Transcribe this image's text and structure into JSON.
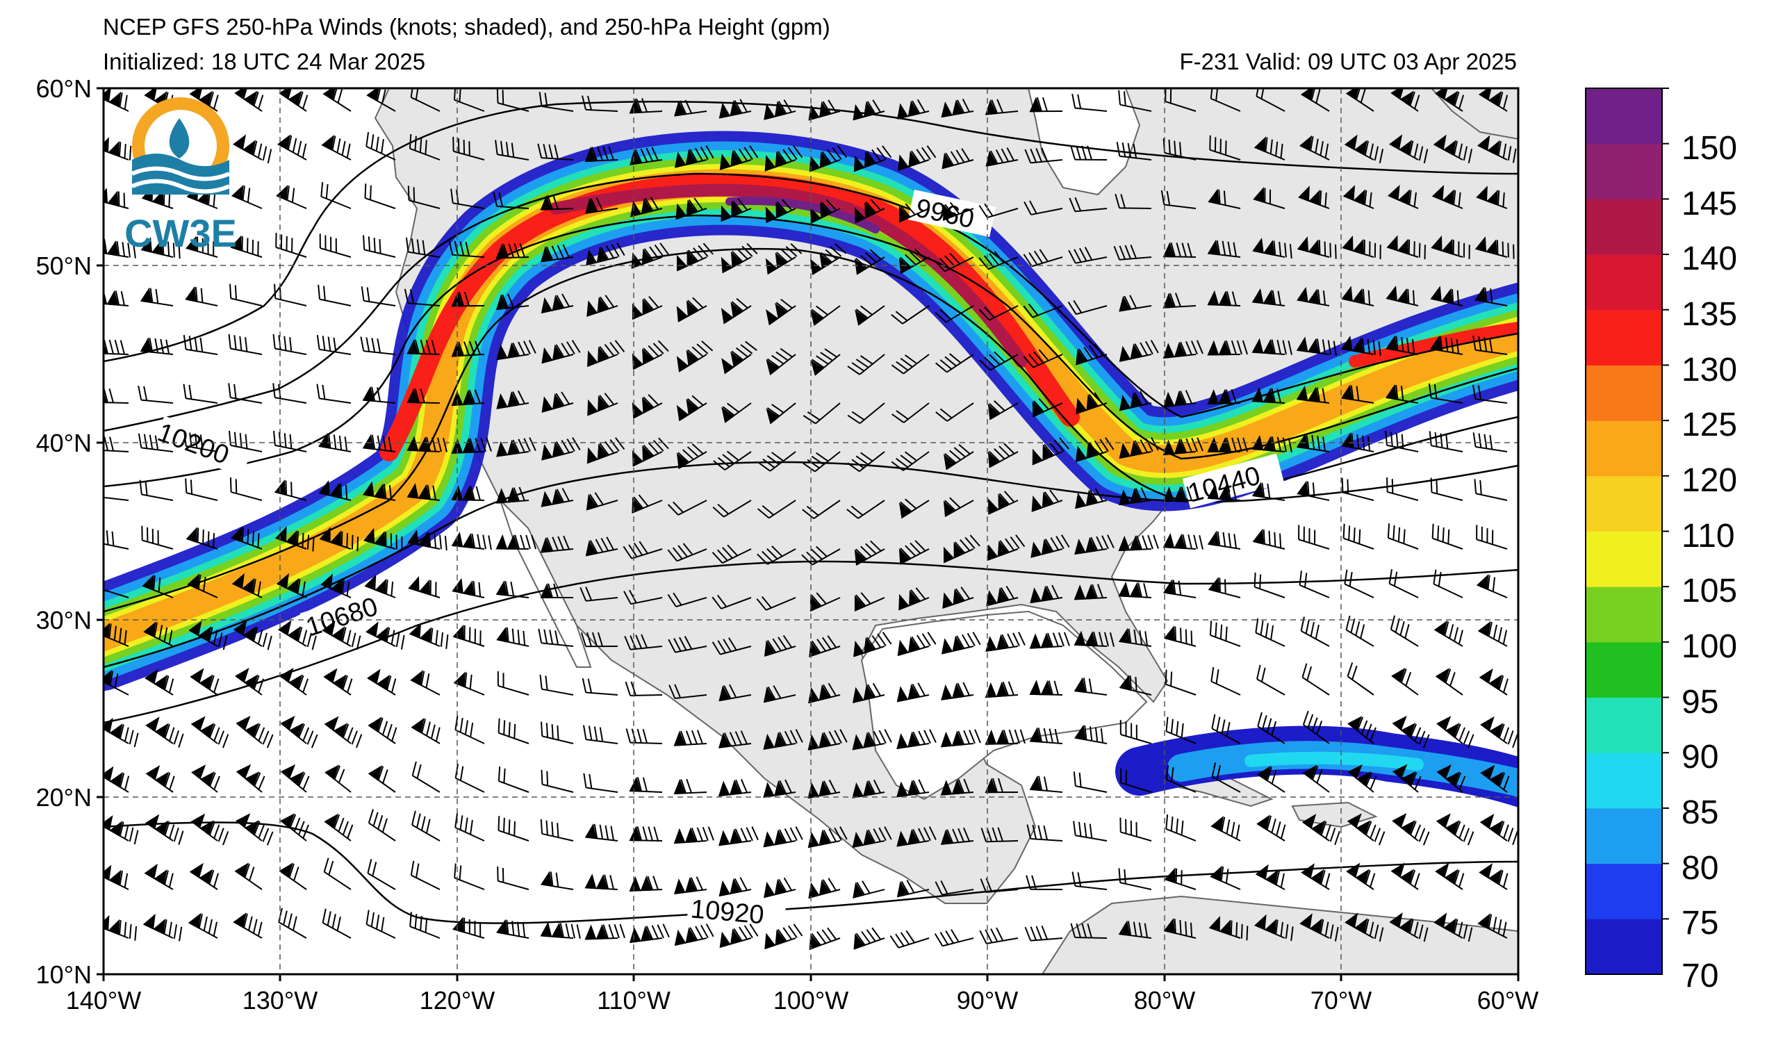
{
  "header": {
    "title": "NCEP GFS 250-hPa Winds (knots; shaded), and 250-hPa Height (gpm)",
    "initialized": "Initialized: 18 UTC 24 Mar 2025",
    "valid": "F-231  Valid: 09 UTC 03 Apr 2025"
  },
  "logo": {
    "text": "CW3E",
    "colors": {
      "sun": "#f5a623",
      "wave": "#1e7fa6"
    }
  },
  "axes": {
    "lat_labels": [
      "60°N",
      "50°N",
      "40°N",
      "30°N",
      "20°N",
      "10°N"
    ],
    "lon_labels": [
      "140°W",
      "130°W",
      "120°W",
      "110°W",
      "100°W",
      "90°W",
      "80°W",
      "70°W",
      "60°W"
    ],
    "lat_values": [
      60,
      50,
      40,
      30,
      20,
      10
    ],
    "lon_values": [
      -140,
      -130,
      -120,
      -110,
      -100,
      -90,
      -80,
      -70,
      -60
    ]
  },
  "colorbar": {
    "labels": [
      "150",
      "145",
      "140",
      "135",
      "130",
      "125",
      "120",
      "110",
      "105",
      "100",
      "95",
      "90",
      "85",
      "80",
      "75",
      "70"
    ],
    "levels": [
      70,
      75,
      80,
      85,
      90,
      95,
      100,
      105,
      110,
      120,
      125,
      130,
      135,
      140,
      145,
      150,
      155
    ],
    "colors": [
      "#1c1cc8",
      "#1e3cf0",
      "#1e9ef0",
      "#20d8f0",
      "#22e0b8",
      "#20c020",
      "#78d020",
      "#f0f020",
      "#f8d020",
      "#f8a818",
      "#f87818",
      "#f82018",
      "#d81830",
      "#b01848",
      "#902070",
      "#702088"
    ]
  },
  "contours": {
    "labels": [
      "9960",
      "10200",
      "10440",
      "10680",
      "10920"
    ],
    "values": [
      9960,
      10200,
      10440,
      10680,
      10920
    ]
  },
  "map": {
    "land_color": "#e6e6e6",
    "ocean_color": "#ffffff",
    "grid_style": "dashed"
  }
}
